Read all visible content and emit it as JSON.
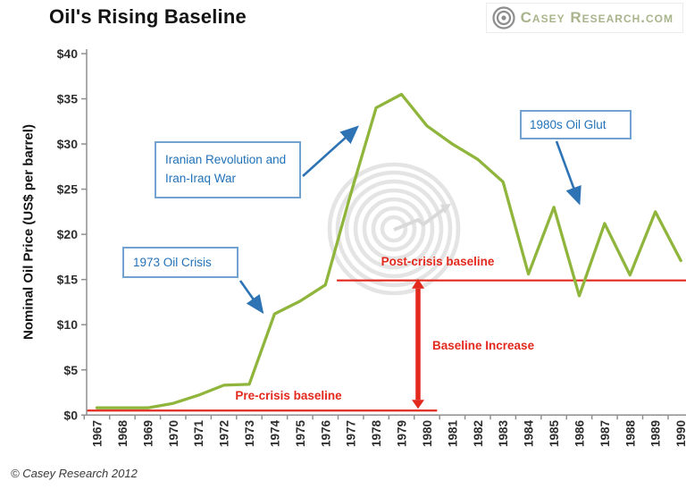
{
  "header": {
    "title": "Oil's Rising Baseline",
    "logo_text": "Casey Research.com"
  },
  "footer": {
    "copyright": "© Casey Research 2012"
  },
  "chart_data": {
    "type": "line",
    "title": "Oil's Rising Baseline",
    "xlabel": "",
    "ylabel": "Nominal Oil Price (US$ per barrel)",
    "ylim": [
      0,
      40
    ],
    "y_ticks": [
      0,
      5,
      10,
      15,
      20,
      25,
      30,
      35,
      40
    ],
    "y_tick_labels": [
      "$0",
      "$5",
      "$10",
      "$15",
      "$20",
      "$25",
      "$30",
      "$35",
      "$40"
    ],
    "categories": [
      "1967",
      "1968",
      "1969",
      "1970",
      "1971",
      "1972",
      "1973",
      "1974",
      "1975",
      "1976",
      "1977",
      "1978",
      "1979",
      "1980",
      "1981",
      "1982",
      "1983",
      "1984",
      "1985",
      "1986",
      "1987",
      "1988",
      "1989",
      "1990"
    ],
    "series": [
      {
        "name": "Nominal Oil Price",
        "color": "#8fb53c",
        "values": [
          0.8,
          0.8,
          0.8,
          1.3,
          2.2,
          3.3,
          3.4,
          11.2,
          12.6,
          14.4,
          24.5,
          34.0,
          35.5,
          32.0,
          30.0,
          28.3,
          25.8,
          15.6,
          23.0,
          13.2,
          21.2,
          15.5,
          22.5,
          17.1
        ]
      }
    ],
    "gridlines": false,
    "legend": "none",
    "annotations": {
      "callouts": [
        {
          "text": "1973 Oil Crisis",
          "points_to_year": 1974
        },
        {
          "text": "Iranian Revolution and Iran-Iraq War",
          "points_to_year": 1978
        },
        {
          "text": "1980s Oil Glut",
          "points_to_year": 1986
        }
      ],
      "baselines": [
        {
          "label": "Pre-crisis baseline",
          "value": 0.5,
          "x_start": 1966.6,
          "x_end": 1980.4
        },
        {
          "label": "Post-crisis baseline",
          "value": 14.9,
          "x_start": 1976.45,
          "x_end": 1990.8
        }
      ],
      "increase_arrow": {
        "label": "Baseline Increase",
        "x": 1979.65,
        "from": 0.5,
        "to": 14.9
      }
    },
    "colors": {
      "line": "#8fb53c",
      "annotation_blue": "#2e74b5",
      "callout_border_blue": "#74a2d0",
      "callout_text_blue": "#2272b9",
      "baseline_red": "#e3291d",
      "axis_gray": "#8f8f8f",
      "tick_text": "#2f2f2f",
      "watermark_gray": "#e4e4e4"
    }
  }
}
